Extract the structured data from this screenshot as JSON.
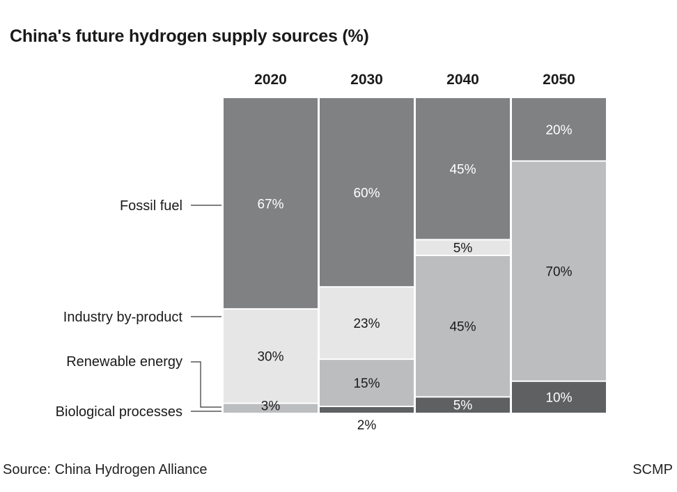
{
  "title": "China's future hydrogen supply sources (%)",
  "source": "Source: China Hydrogen Alliance",
  "credit": "SCMP",
  "colors": {
    "fossil": "#808183",
    "industry": "#e6e6e6",
    "renewable": "#bcbdbf",
    "biological": "#5f6062",
    "label_on_dark": "#ffffff",
    "label_on_light": "#1a1a1a"
  },
  "chart_data": {
    "type": "bar",
    "stacked": true,
    "normalized_percent": true,
    "title": "China's future hydrogen supply sources (%)",
    "categories": [
      "2020",
      "2030",
      "2040",
      "2050"
    ],
    "series": [
      {
        "name": "Biological processes",
        "color_key": "biological",
        "values": [
          0,
          2,
          5,
          10
        ],
        "labels": [
          "",
          "2%",
          "5%",
          "10%"
        ]
      },
      {
        "name": "Renewable energy",
        "color_key": "renewable",
        "values": [
          3,
          15,
          45,
          70
        ],
        "labels": [
          "3%",
          "15%",
          "45%",
          "70%"
        ]
      },
      {
        "name": "Industry by-product",
        "color_key": "industry",
        "values": [
          30,
          23,
          5,
          0
        ],
        "labels": [
          "30%",
          "23%",
          "5%",
          ""
        ]
      },
      {
        "name": "Fossil fuel",
        "color_key": "fossil",
        "values": [
          67,
          60,
          45,
          20
        ],
        "labels": [
          "67%",
          "60%",
          "45%",
          "20%"
        ]
      }
    ],
    "ylim": [
      0,
      100
    ],
    "legend_placement": "left",
    "grid": false
  }
}
